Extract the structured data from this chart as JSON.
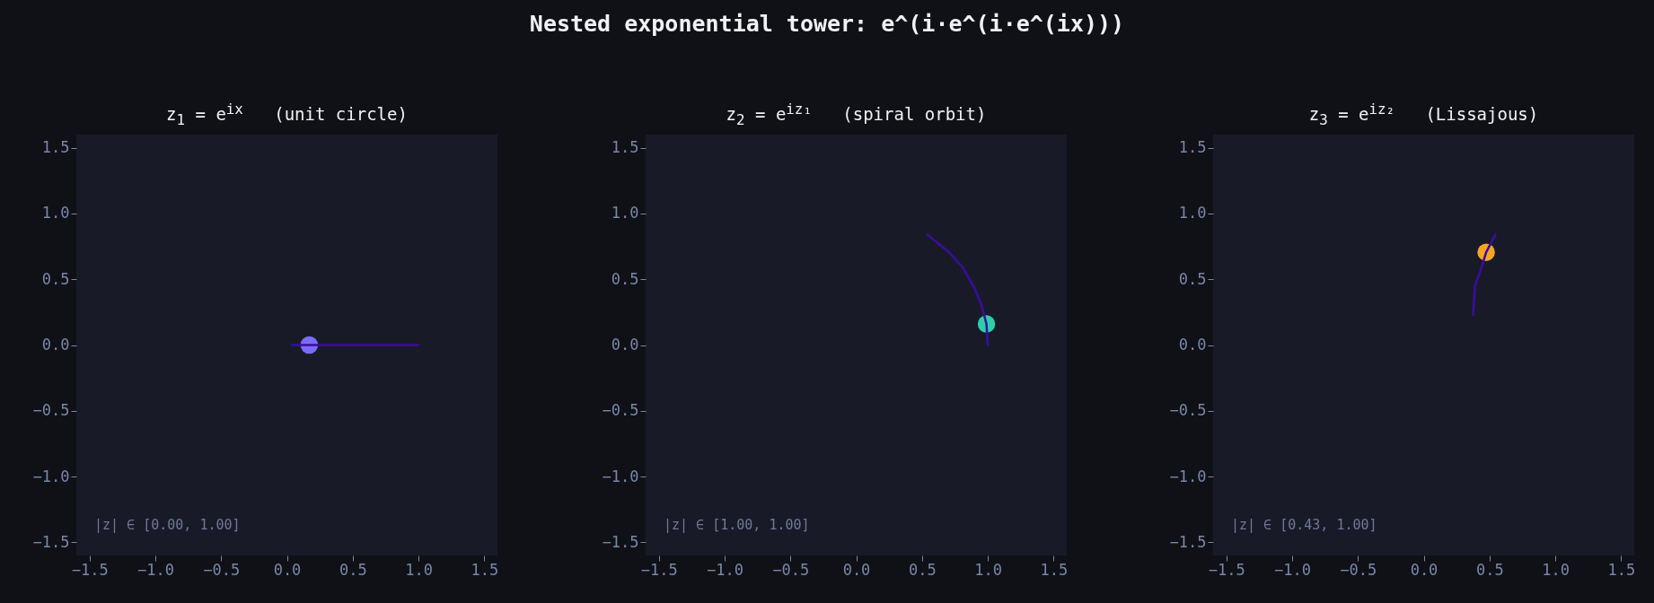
{
  "chart_data": [
    {
      "type": "other",
      "title": "Nested exponential tower: e^(i·e^(i·e^(ix)))"
    },
    {
      "type": "line",
      "title": "z$_{1}$ = e$^{ix}$   (unit circle)",
      "xlim": [
        -1.6,
        1.6
      ],
      "ylim": [
        -1.6,
        1.6
      ],
      "xticks": [
        {
          "value": -1.5,
          "label": "−1.5"
        },
        {
          "value": -1.0,
          "label": "−1.0"
        },
        {
          "value": -0.5,
          "label": "−0.5"
        },
        {
          "value": 0.0,
          "label": "0.0"
        },
        {
          "value": 0.5,
          "label": "0.5"
        },
        {
          "value": 1.0,
          "label": "1.0"
        },
        {
          "value": 1.5,
          "label": "1.5"
        }
      ],
      "yticks": [
        {
          "value": -1.5,
          "label": "−1.5"
        },
        {
          "value": -1.0,
          "label": "−1.0"
        },
        {
          "value": -0.5,
          "label": "−0.5"
        },
        {
          "value": 0.0,
          "label": "0.0"
        },
        {
          "value": 0.5,
          "label": "0.5"
        },
        {
          "value": 1.0,
          "label": "1.0"
        },
        {
          "value": 1.5,
          "label": "1.5"
        }
      ],
      "annotations": [
        "|z| ∈ [0.00, 1.00]"
      ],
      "series": [
        {
          "type": "line",
          "color": "#3a0ca3",
          "x": [
            0.04,
            0.3,
            0.6,
            1.0
          ],
          "values": [
            0,
            0,
            0,
            0
          ]
        },
        {
          "type": "scatter",
          "color": "#7b6cf6",
          "x": [
            0.17
          ],
          "values": [
            0
          ]
        }
      ]
    },
    {
      "type": "line",
      "title": "z$_{2}$ = e$^{iz₁}$   (spiral orbit)",
      "xlim": [
        -1.6,
        1.6
      ],
      "ylim": [
        -1.6,
        1.6
      ],
      "xticks": [
        {
          "value": -1.5,
          "label": "−1.5"
        },
        {
          "value": -1.0,
          "label": "−1.0"
        },
        {
          "value": -0.5,
          "label": "−0.5"
        },
        {
          "value": 0.0,
          "label": "0.0"
        },
        {
          "value": 0.5,
          "label": "0.5"
        },
        {
          "value": 1.0,
          "label": "1.0"
        },
        {
          "value": 1.5,
          "label": "1.5"
        }
      ],
      "yticks": [
        {
          "value": -1.5,
          "label": "−1.5"
        },
        {
          "value": -1.0,
          "label": "−1.0"
        },
        {
          "value": -0.5,
          "label": "−0.5"
        },
        {
          "value": 0.0,
          "label": "0.0"
        },
        {
          "value": 0.5,
          "label": "0.5"
        },
        {
          "value": 1.0,
          "label": "1.0"
        },
        {
          "value": 1.5,
          "label": "1.5"
        }
      ],
      "annotations": [
        "|z| ∈ [1.00, 1.00]"
      ],
      "series": [
        {
          "type": "line",
          "color": "#3a0ca3",
          "x": [
            0.54,
            0.7,
            0.81,
            0.9,
            0.95,
            0.99,
            1.0
          ],
          "values": [
            0.84,
            0.71,
            0.59,
            0.43,
            0.31,
            0.16,
            0.0
          ]
        },
        {
          "type": "scatter",
          "color": "#2ecfa8",
          "x": [
            0.99
          ],
          "values": [
            0.16
          ]
        }
      ]
    },
    {
      "type": "line",
      "title": "z$_{3}$ = e$^{iz₂}$   (Lissajous)",
      "xlim": [
        -1.6,
        1.6
      ],
      "ylim": [
        -1.6,
        1.6
      ],
      "xticks": [
        {
          "value": -1.5,
          "label": "−1.5"
        },
        {
          "value": -1.0,
          "label": "−1.0"
        },
        {
          "value": -0.5,
          "label": "−0.5"
        },
        {
          "value": 0.0,
          "label": "0.0"
        },
        {
          "value": 0.5,
          "label": "0.5"
        },
        {
          "value": 1.0,
          "label": "1.0"
        },
        {
          "value": 1.5,
          "label": "1.5"
        }
      ],
      "yticks": [
        {
          "value": -1.5,
          "label": "−1.5"
        },
        {
          "value": -1.0,
          "label": "−1.0"
        },
        {
          "value": -0.5,
          "label": "−0.5"
        },
        {
          "value": 0.0,
          "label": "0.0"
        },
        {
          "value": 0.5,
          "label": "0.5"
        },
        {
          "value": 1.0,
          "label": "1.0"
        },
        {
          "value": 1.5,
          "label": "1.5"
        }
      ],
      "annotations": [
        "|z| ∈ [0.43, 1.00]"
      ],
      "series": [
        {
          "type": "line",
          "color": "#3a0ca3",
          "x": [
            0.375,
            0.39,
            0.43,
            0.475,
            0.545
          ],
          "values": [
            0.23,
            0.45,
            0.56,
            0.705,
            0.84
          ]
        },
        {
          "type": "scatter",
          "color": "#f5a623",
          "x": [
            0.475
          ],
          "values": [
            0.705
          ]
        }
      ]
    }
  ]
}
